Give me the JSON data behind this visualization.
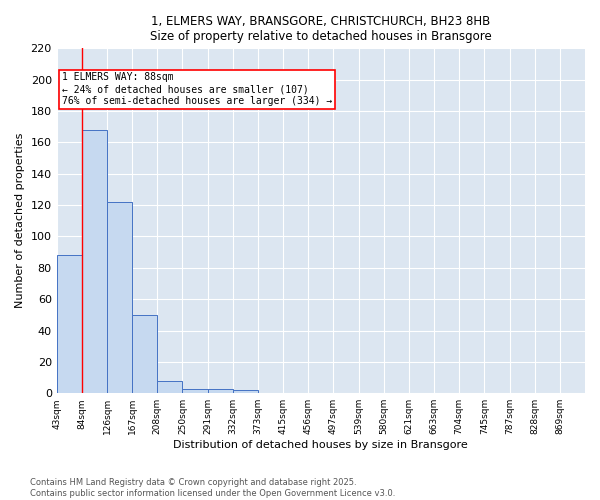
{
  "title_line1": "1, ELMERS WAY, BRANSGORE, CHRISTCHURCH, BH23 8HB",
  "title_line2": "Size of property relative to detached houses in Bransgore",
  "xlabel": "Distribution of detached houses by size in Bransgore",
  "ylabel": "Number of detached properties",
  "footer_line1": "Contains HM Land Registry data © Crown copyright and database right 2025.",
  "footer_line2": "Contains public sector information licensed under the Open Government Licence v3.0.",
  "bin_labels": [
    "43sqm",
    "84sqm",
    "126sqm",
    "167sqm",
    "208sqm",
    "250sqm",
    "291sqm",
    "332sqm",
    "373sqm",
    "415sqm",
    "456sqm",
    "497sqm",
    "539sqm",
    "580sqm",
    "621sqm",
    "663sqm",
    "704sqm",
    "745sqm",
    "787sqm",
    "828sqm",
    "869sqm"
  ],
  "bar_values": [
    88,
    168,
    122,
    50,
    8,
    3,
    3,
    2,
    0,
    0,
    0,
    0,
    0,
    0,
    0,
    0,
    0,
    0,
    0,
    0,
    0
  ],
  "bar_color": "#c6d9f0",
  "bar_edge_color": "#4472c4",
  "background_color": "#dce6f1",
  "property_line_x": 0.5,
  "annotation_text": "1 ELMERS WAY: 88sqm\n← 24% of detached houses are smaller (107)\n76% of semi-detached houses are larger (334) →",
  "annotation_box_color": "white",
  "annotation_box_edge": "red",
  "ylim": [
    0,
    220
  ],
  "yticks": [
    0,
    20,
    40,
    60,
    80,
    100,
    120,
    140,
    160,
    180,
    200,
    220
  ],
  "figwidth": 6.0,
  "figheight": 5.0,
  "dpi": 100
}
